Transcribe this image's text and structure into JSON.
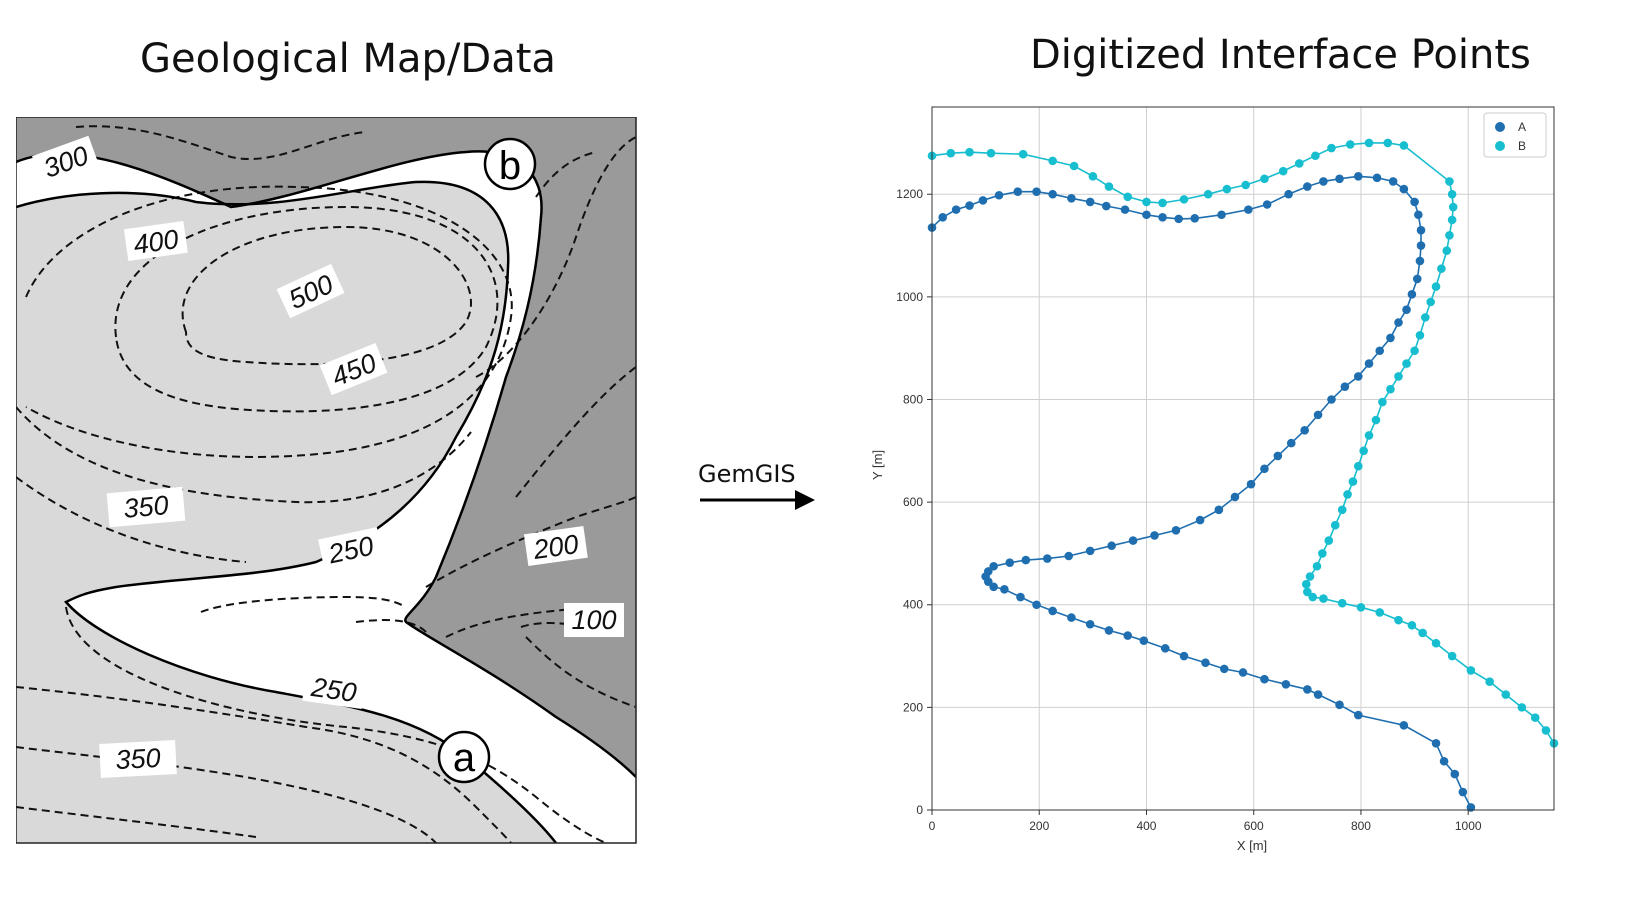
{
  "titles": {
    "left": "Geological Map/Data",
    "right": "Digitized Interface Points"
  },
  "map": {
    "point_a": "a",
    "point_b": "b",
    "contour_labels": [
      "300",
      "400",
      "500",
      "450",
      "350",
      "250",
      "200",
      "100",
      "250",
      "350"
    ],
    "colors": {
      "dark_unit": "#9a9a9a",
      "middle_unit": "#ffffff",
      "light_unit": "#d9d9d9"
    }
  },
  "arrow": {
    "label": "GemGIS"
  },
  "chart_data": {
    "type": "scatter",
    "title": "",
    "xlabel": "X [m]",
    "ylabel": "Y [m]",
    "xlim": [
      0,
      1160
    ],
    "ylim": [
      0,
      1370
    ],
    "xticks": [
      0,
      200,
      400,
      600,
      800,
      1000
    ],
    "yticks": [
      0,
      200,
      400,
      600,
      800,
      1000,
      1200
    ],
    "grid": true,
    "legend": "top-right",
    "series": [
      {
        "name": "A",
        "color": "#1f6fb0",
        "points": [
          [
            1005,
            5
          ],
          [
            990,
            35
          ],
          [
            975,
            70
          ],
          [
            955,
            95
          ],
          [
            940,
            130
          ],
          [
            880,
            165
          ],
          [
            795,
            185
          ],
          [
            760,
            205
          ],
          [
            720,
            225
          ],
          [
            700,
            235
          ],
          [
            660,
            245
          ],
          [
            620,
            255
          ],
          [
            580,
            268
          ],
          [
            545,
            275
          ],
          [
            510,
            287
          ],
          [
            470,
            300
          ],
          [
            435,
            315
          ],
          [
            395,
            330
          ],
          [
            365,
            340
          ],
          [
            330,
            350
          ],
          [
            295,
            362
          ],
          [
            260,
            375
          ],
          [
            225,
            388
          ],
          [
            195,
            400
          ],
          [
            165,
            415
          ],
          [
            135,
            430
          ],
          [
            115,
            435
          ],
          [
            105,
            445
          ],
          [
            100,
            455
          ],
          [
            105,
            465
          ],
          [
            115,
            475
          ],
          [
            145,
            482
          ],
          [
            175,
            487
          ],
          [
            215,
            490
          ],
          [
            255,
            495
          ],
          [
            295,
            505
          ],
          [
            335,
            515
          ],
          [
            375,
            525
          ],
          [
            415,
            535
          ],
          [
            455,
            545
          ],
          [
            500,
            565
          ],
          [
            535,
            585
          ],
          [
            565,
            610
          ],
          [
            595,
            635
          ],
          [
            620,
            665
          ],
          [
            645,
            690
          ],
          [
            670,
            715
          ],
          [
            695,
            740
          ],
          [
            720,
            770
          ],
          [
            745,
            800
          ],
          [
            770,
            825
          ],
          [
            795,
            845
          ],
          [
            815,
            870
          ],
          [
            835,
            895
          ],
          [
            855,
            920
          ],
          [
            870,
            950
          ],
          [
            885,
            975
          ],
          [
            895,
            1005
          ],
          [
            905,
            1035
          ],
          [
            910,
            1070
          ],
          [
            912,
            1100
          ],
          [
            912,
            1130
          ],
          [
            907,
            1160
          ],
          [
            900,
            1185
          ],
          [
            880,
            1210
          ],
          [
            860,
            1225
          ],
          [
            830,
            1232
          ],
          [
            795,
            1235
          ],
          [
            760,
            1230
          ],
          [
            730,
            1225
          ],
          [
            700,
            1215
          ],
          [
            665,
            1200
          ],
          [
            625,
            1180
          ],
          [
            590,
            1170
          ],
          [
            540,
            1160
          ],
          [
            490,
            1153
          ],
          [
            460,
            1152
          ],
          [
            430,
            1155
          ],
          [
            400,
            1160
          ],
          [
            360,
            1170
          ],
          [
            325,
            1177
          ],
          [
            295,
            1185
          ],
          [
            260,
            1192
          ],
          [
            225,
            1200
          ],
          [
            195,
            1205
          ],
          [
            160,
            1205
          ],
          [
            125,
            1198
          ],
          [
            95,
            1188
          ],
          [
            70,
            1178
          ],
          [
            45,
            1170
          ],
          [
            20,
            1155
          ],
          [
            0,
            1135
          ]
        ]
      },
      {
        "name": "B",
        "color": "#17becf",
        "points": [
          [
            1160,
            130
          ],
          [
            1145,
            155
          ],
          [
            1125,
            180
          ],
          [
            1100,
            200
          ],
          [
            1070,
            225
          ],
          [
            1040,
            250
          ],
          [
            1005,
            272
          ],
          [
            970,
            300
          ],
          [
            940,
            325
          ],
          [
            915,
            345
          ],
          [
            895,
            360
          ],
          [
            870,
            370
          ],
          [
            835,
            385
          ],
          [
            800,
            395
          ],
          [
            765,
            403
          ],
          [
            730,
            412
          ],
          [
            710,
            415
          ],
          [
            700,
            425
          ],
          [
            698,
            440
          ],
          [
            705,
            455
          ],
          [
            718,
            475
          ],
          [
            728,
            500
          ],
          [
            740,
            525
          ],
          [
            752,
            555
          ],
          [
            765,
            585
          ],
          [
            775,
            615
          ],
          [
            785,
            640
          ],
          [
            795,
            670
          ],
          [
            805,
            700
          ],
          [
            815,
            730
          ],
          [
            828,
            760
          ],
          [
            840,
            795
          ],
          [
            855,
            820
          ],
          [
            870,
            845
          ],
          [
            885,
            870
          ],
          [
            900,
            895
          ],
          [
            910,
            925
          ],
          [
            920,
            960
          ],
          [
            930,
            990
          ],
          [
            940,
            1020
          ],
          [
            950,
            1055
          ],
          [
            960,
            1090
          ],
          [
            965,
            1120
          ],
          [
            970,
            1150
          ],
          [
            972,
            1175
          ],
          [
            970,
            1200
          ],
          [
            965,
            1225
          ],
          [
            880,
            1295
          ],
          [
            850,
            1300
          ],
          [
            815,
            1300
          ],
          [
            780,
            1297
          ],
          [
            745,
            1290
          ],
          [
            715,
            1275
          ],
          [
            685,
            1260
          ],
          [
            655,
            1245
          ],
          [
            620,
            1230
          ],
          [
            585,
            1218
          ],
          [
            550,
            1210
          ],
          [
            515,
            1200
          ],
          [
            470,
            1190
          ],
          [
            430,
            1183
          ],
          [
            400,
            1185
          ],
          [
            365,
            1195
          ],
          [
            330,
            1215
          ],
          [
            300,
            1235
          ],
          [
            265,
            1255
          ],
          [
            225,
            1265
          ],
          [
            170,
            1278
          ],
          [
            110,
            1280
          ],
          [
            70,
            1282
          ],
          [
            35,
            1280
          ],
          [
            0,
            1275
          ]
        ]
      }
    ]
  }
}
